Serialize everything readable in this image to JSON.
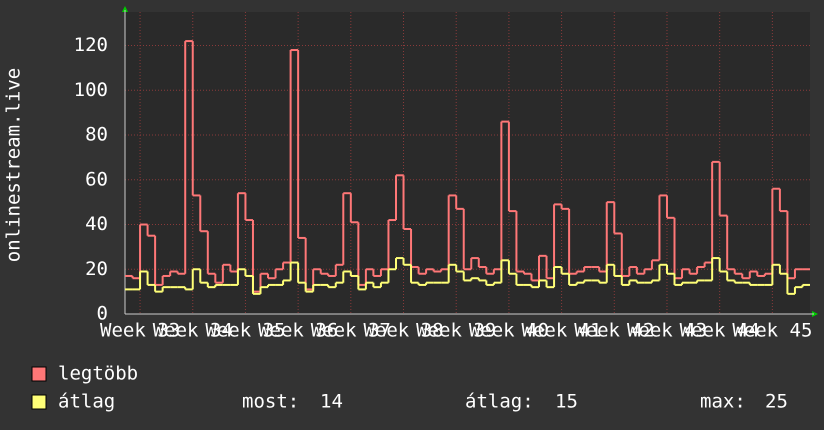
{
  "chart_data": {
    "type": "step-line",
    "ylabel": "onlinestream.live",
    "xlim": [
      0,
      91
    ],
    "xticks": [
      {
        "value": 2,
        "label": "Week 33"
      },
      {
        "value": 9,
        "label": "Week 34"
      },
      {
        "value": 16,
        "label": "Week 35"
      },
      {
        "value": 23,
        "label": "Week 36"
      },
      {
        "value": 30,
        "label": "Week 37"
      },
      {
        "value": 37,
        "label": "Week 38"
      },
      {
        "value": 44,
        "label": "Week 39"
      },
      {
        "value": 51,
        "label": "Week 40"
      },
      {
        "value": 58,
        "label": "Week 41"
      },
      {
        "value": 65,
        "label": "Week 42"
      },
      {
        "value": 72,
        "label": "Week 43"
      },
      {
        "value": 79,
        "label": "Week 44"
      },
      {
        "value": 86,
        "label": "Week 45"
      }
    ],
    "ylim": [
      0,
      135
    ],
    "yticks": [
      0,
      20,
      40,
      60,
      80,
      100,
      120
    ],
    "grid": true,
    "series": [
      {
        "name": "legtöbb",
        "color": "#ff7777",
        "values": [
          17,
          16,
          40,
          35,
          13,
          17,
          19,
          18,
          122,
          53,
          37,
          18,
          14,
          22,
          19,
          54,
          42,
          10,
          18,
          16,
          20,
          23,
          118,
          34,
          11,
          20,
          18,
          17,
          22,
          54,
          41,
          13,
          20,
          17,
          20,
          42,
          62,
          38,
          21,
          18,
          20,
          19,
          20,
          53,
          47,
          20,
          25,
          21,
          18,
          20,
          86,
          46,
          19,
          18,
          15,
          26,
          16,
          49,
          47,
          18,
          19,
          21,
          21,
          19,
          50,
          36,
          17,
          21,
          18,
          20,
          24,
          53,
          43,
          16,
          20,
          18,
          21,
          23,
          68,
          44,
          20,
          18,
          16,
          19,
          17,
          18,
          56,
          46,
          16,
          20,
          20
        ]
      },
      {
        "name": "átlag",
        "color": "#ffff77",
        "values": [
          11,
          11,
          19,
          13,
          10,
          12,
          12,
          12,
          11,
          20,
          14,
          12,
          13,
          13,
          13,
          20,
          17,
          9,
          12,
          13,
          13,
          15,
          23,
          14,
          10,
          13,
          13,
          12,
          14,
          19,
          17,
          11,
          14,
          12,
          14,
          20,
          25,
          22,
          14,
          13,
          14,
          14,
          14,
          22,
          19,
          15,
          16,
          15,
          13,
          14,
          24,
          18,
          13,
          13,
          12,
          15,
          12,
          21,
          18,
          13,
          14,
          15,
          15,
          14,
          22,
          17,
          13,
          15,
          14,
          14,
          15,
          22,
          18,
          13,
          14,
          14,
          15,
          15,
          25,
          19,
          15,
          14,
          14,
          13,
          13,
          13,
          22,
          18,
          9,
          12,
          13
        ]
      }
    ],
    "stats": [
      {
        "label": "most:",
        "value": 14
      },
      {
        "label": "átlag:",
        "value": 15
      },
      {
        "label": "max:",
        "value": 25
      }
    ]
  }
}
